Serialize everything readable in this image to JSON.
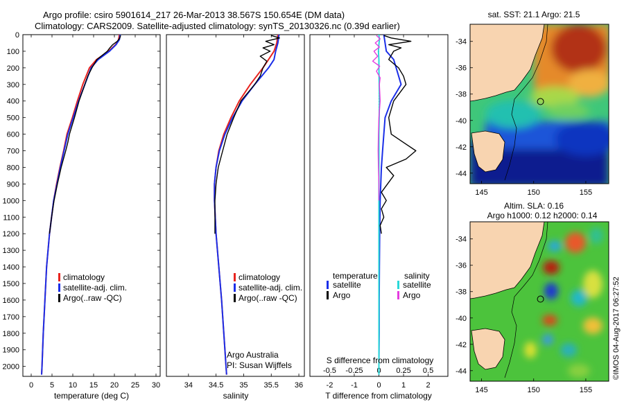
{
  "header": {
    "line1": "Argo profile: csiro 5901614_217 26-Mar-2013 38.567S 150.654E (DM data)",
    "line2": "Climatology: CARS2009. Satellite-adjusted climatology: synTS_20130326.nc (0.39d earlier)"
  },
  "credit": "©IMOS 04-Aug-2017 06:27:52",
  "colors": {
    "climatology": "#e8231e",
    "satellite": "#1a2ee8",
    "argo": "#000000",
    "sal_satellite": "#2ad8d8",
    "sal_argo": "#e53ce0",
    "land": "#f8d4b0",
    "ocean_deep": "#0a1f8f"
  },
  "chart_data": [
    {
      "id": "temperature",
      "type": "line",
      "xlabel": "temperature (deg C)",
      "ylabel": "",
      "xlim": [
        -2,
        31
      ],
      "ylim": [
        2060,
        0
      ],
      "xticks": [
        0,
        5,
        10,
        15,
        20,
        25,
        30
      ],
      "yticks": [
        0,
        100,
        200,
        300,
        400,
        500,
        600,
        700,
        800,
        900,
        1000,
        1100,
        1200,
        1300,
        1400,
        1500,
        1600,
        1700,
        1800,
        1900,
        2000
      ],
      "legend": {
        "position": "center-right",
        "entries": [
          "climatology",
          "satellite-adj. clim.",
          "Argo(..raw -QC)"
        ]
      },
      "series": [
        {
          "name": "climatology",
          "color_key": "climatology",
          "width": 2,
          "depth": [
            0,
            30,
            60,
            100,
            150,
            200,
            300,
            400,
            500,
            600,
            700,
            800,
            900,
            1000,
            1200,
            1400,
            1600,
            1800,
            2000,
            2050
          ],
          "values": [
            21.2,
            21.0,
            20.3,
            18.6,
            15.7,
            14.0,
            12.4,
            11.1,
            9.9,
            8.6,
            7.8,
            6.9,
            6.1,
            5.4,
            4.4,
            3.7,
            3.3,
            2.9,
            2.6,
            2.5
          ]
        },
        {
          "name": "satellite-adj. clim.",
          "color_key": "satellite",
          "width": 2,
          "depth": [
            0,
            30,
            60,
            100,
            150,
            200,
            300,
            400,
            500,
            600,
            700,
            800,
            900,
            1000,
            1200,
            1400,
            1600,
            1800,
            2000,
            2050
          ],
          "values": [
            21.4,
            21.2,
            20.4,
            18.8,
            16.1,
            14.4,
            12.9,
            11.4,
            10.1,
            8.8,
            7.9,
            7.0,
            6.2,
            5.4,
            4.4,
            3.7,
            3.3,
            2.9,
            2.6,
            2.5
          ]
        },
        {
          "name": "Argo(..raw -QC)",
          "color_key": "argo",
          "width": 1.4,
          "depth": [
            5,
            20,
            40,
            60,
            80,
            100,
            150,
            200,
            250,
            300,
            400,
            500,
            600,
            650,
            700,
            800,
            900,
            1000,
            1100,
            1200
          ],
          "values": [
            21.5,
            21.3,
            20.7,
            19.6,
            18.9,
            18.3,
            15.8,
            14.6,
            13.6,
            12.9,
            11.5,
            10.4,
            9.2,
            8.8,
            8.3,
            7.2,
            6.3,
            5.5,
            4.9,
            4.4
          ]
        }
      ]
    },
    {
      "id": "salinity",
      "type": "line",
      "xlabel": "salinity",
      "xlim": [
        33.6,
        36.1
      ],
      "ylim": [
        2060,
        0
      ],
      "xticks": [
        34,
        34.5,
        35,
        35.5,
        36
      ],
      "legend": {
        "position": "center-right",
        "entries": [
          "climatology",
          "satellite-adj. clim.",
          "Argo(..raw -QC)"
        ]
      },
      "note_lines": [
        "Argo Australia",
        "PI: Susan Wijffels"
      ],
      "series": [
        {
          "name": "climatology",
          "color_key": "climatology",
          "width": 2,
          "depth": [
            0,
            50,
            100,
            150,
            200,
            300,
            400,
            500,
            600,
            700,
            800,
            900,
            1000,
            1200,
            1400,
            1600,
            1800,
            2000,
            2050
          ],
          "values": [
            35.62,
            35.6,
            35.55,
            35.45,
            35.35,
            35.12,
            34.92,
            34.77,
            34.64,
            34.55,
            34.5,
            34.47,
            34.47,
            34.5,
            34.55,
            34.6,
            34.64,
            34.68,
            34.69
          ]
        },
        {
          "name": "satellite-adj. clim.",
          "color_key": "satellite",
          "width": 2,
          "depth": [
            0,
            50,
            100,
            150,
            200,
            300,
            400,
            500,
            600,
            700,
            800,
            900,
            1000,
            1200,
            1400,
            1600,
            1800,
            2000,
            2050
          ],
          "values": [
            35.64,
            35.62,
            35.58,
            35.55,
            35.45,
            35.2,
            34.97,
            34.8,
            34.66,
            34.56,
            34.5,
            34.47,
            34.47,
            34.5,
            34.55,
            34.6,
            34.64,
            34.68,
            34.69
          ]
        },
        {
          "name": "Argo(..raw -QC)",
          "color_key": "argo",
          "width": 1.4,
          "depth": [
            5,
            20,
            40,
            60,
            80,
            100,
            130,
            160,
            200,
            250,
            300,
            400,
            500,
            600,
            700,
            750,
            800,
            900,
            1000,
            1100,
            1200
          ],
          "values": [
            35.5,
            35.65,
            35.4,
            35.55,
            35.35,
            35.48,
            35.3,
            35.42,
            35.35,
            35.3,
            35.2,
            34.95,
            34.82,
            34.7,
            34.62,
            34.58,
            34.54,
            34.5,
            34.48,
            34.48,
            34.48
          ]
        }
      ]
    },
    {
      "id": "difference",
      "type": "line",
      "xlabel": "T difference from climatology",
      "xlabel_top": "S difference from climatology",
      "xlim": [
        -2.8,
        2.8
      ],
      "ylim": [
        2060,
        0
      ],
      "xticks_bottom": [
        -2,
        -1,
        0,
        1,
        2
      ],
      "xticks_top": [
        -0.5,
        -0.25,
        0,
        0.25,
        0.5
      ],
      "legend": {
        "position": "center",
        "temperature_header": "temperature",
        "salinity_header": "salinity",
        "t_entries": [
          "satellite",
          "Argo"
        ],
        "s_entries": [
          "satellite",
          "Argo"
        ]
      },
      "series": [
        {
          "name": "satellite",
          "group": "temperature",
          "color_key": "satellite",
          "width": 2,
          "depth": [
            0,
            50,
            100,
            150,
            200,
            300,
            400,
            500,
            600,
            700,
            800,
            1000,
            1200,
            1400,
            1600,
            1800,
            2000,
            2050
          ],
          "values": [
            0.2,
            0.25,
            0.3,
            0.6,
            0.7,
            0.9,
            0.5,
            0.25,
            0.2,
            0.15,
            0.1,
            0.05,
            0.03,
            0.02,
            0.01,
            0.01,
            0.0,
            0.0
          ]
        },
        {
          "name": "Argo",
          "group": "temperature",
          "color_key": "argo",
          "width": 1.4,
          "depth": [
            5,
            20,
            40,
            60,
            80,
            100,
            150,
            200,
            250,
            300,
            400,
            500,
            600,
            650,
            700,
            750,
            800,
            850,
            900,
            950,
            1000,
            1050,
            1100,
            1150,
            1200
          ],
          "values": [
            0.2,
            0.5,
            1.3,
            0.4,
            0.9,
            0.6,
            0.4,
            0.8,
            1.0,
            1.1,
            0.6,
            0.4,
            0.5,
            1.0,
            1.5,
            1.1,
            0.3,
            0.6,
            0.35,
            0.1,
            0.3,
            0.1,
            0.2,
            0.05,
            0.1
          ]
        },
        {
          "name": "satellite",
          "group": "salinity",
          "color_key": "sal_satellite",
          "width": 2,
          "depth": [
            0,
            30,
            60,
            100,
            150,
            200,
            300,
            400,
            500,
            600,
            700,
            800,
            1000,
            1200,
            1400,
            1600,
            1800,
            2000,
            2050
          ],
          "values": [
            0.0,
            0.02,
            0.0,
            -0.02,
            0.0,
            0.0,
            0.01,
            0.02,
            0.01,
            0.0,
            0.0,
            0.0,
            0.0,
            0.0,
            0.0,
            0.0,
            0.0,
            0.0,
            0.0
          ]
        },
        {
          "name": "Argo",
          "group": "salinity",
          "color_key": "sal_argo",
          "width": 1.4,
          "depth": [
            5,
            25,
            50,
            75,
            100,
            130,
            160,
            190,
            220,
            260,
            300,
            400,
            500,
            600,
            700,
            800,
            900,
            1000
          ],
          "values": [
            -0.1,
            0.05,
            -0.15,
            0.02,
            -0.2,
            -0.05,
            -0.25,
            0.03,
            -0.1,
            0.05,
            0.02,
            0.05,
            0.0,
            -0.02,
            -0.03,
            -0.02,
            0.0,
            0.0
          ]
        }
      ]
    },
    {
      "id": "map_sst",
      "type": "heatmap",
      "title": "sat. SST: 21.1  Argo: 21.5",
      "xlim": [
        143.9,
        157.2
      ],
      "ylim": [
        -44.8,
        -32.7
      ],
      "xticks": [
        145,
        150,
        155
      ],
      "yticks": [
        -34,
        -36,
        -38,
        -40,
        -42,
        -44
      ],
      "float_position": [
        150.654,
        -38.567
      ]
    },
    {
      "id": "map_sla",
      "type": "heatmap",
      "title_lines": [
        "Altim. SLA: 0.16",
        "Argo h1000: 0.12 h2000: 0.14"
      ],
      "xlim": [
        143.9,
        157.2
      ],
      "ylim": [
        -44.8,
        -32.7
      ],
      "xticks": [
        145,
        150,
        155
      ],
      "yticks": [
        -34,
        -36,
        -38,
        -40,
        -42,
        -44
      ],
      "float_position": [
        150.654,
        -38.567
      ]
    }
  ]
}
